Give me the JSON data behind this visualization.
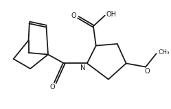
{
  "bg_color": "#ffffff",
  "line_color": "#1a1a1a",
  "line_width": 1.3,
  "font_size": 7.0,
  "fig_width": 2.49,
  "fig_height": 1.59,
  "dpi": 100,
  "xlim": [
    0,
    9.5
  ],
  "ylim": [
    0,
    6.1
  ]
}
